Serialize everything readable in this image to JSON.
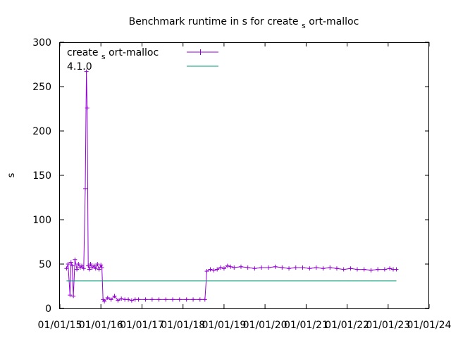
{
  "chart_data": {
    "type": "line",
    "title_main": "Benchmark runtime in s for create",
    "title_sub": "s",
    "title_tail": "ort-malloc",
    "xlabel": "",
    "ylabel": "s",
    "ylim": [
      0,
      300
    ],
    "xlim": [
      "2015-01-01",
      "2024-01-01"
    ],
    "yticks": [
      0,
      50,
      100,
      150,
      200,
      250,
      300
    ],
    "xticks": [
      "01/01/15",
      "01/01/16",
      "01/01/17",
      "01/01/18",
      "01/01/19",
      "01/01/20",
      "01/01/21",
      "01/01/22",
      "01/01/23",
      "01/01/24"
    ],
    "grid": false,
    "legend_position": "top-left",
    "series": [
      {
        "name_main": "create",
        "name_sub": "s",
        "name_tail": "ort-malloc",
        "color": "#9400d3",
        "marker": "plus",
        "x": [
          "2015-03-01",
          "2015-03-15",
          "2015-04-01",
          "2015-04-10",
          "2015-04-20",
          "2015-05-01",
          "2015-05-15",
          "2015-06-01",
          "2015-06-15",
          "2015-07-01",
          "2015-07-15",
          "2015-08-01",
          "2015-08-15",
          "2015-08-25",
          "2015-09-01",
          "2015-09-10",
          "2015-09-20",
          "2015-10-01",
          "2015-10-15",
          "2015-11-01",
          "2015-11-15",
          "2015-12-01",
          "2015-12-15",
          "2016-01-01",
          "2016-01-10",
          "2016-01-20",
          "2016-02-01",
          "2016-03-01",
          "2016-04-01",
          "2016-05-01",
          "2016-06-01",
          "2016-07-01",
          "2016-08-01",
          "2016-09-01",
          "2016-10-01",
          "2016-11-01",
          "2016-12-01",
          "2017-02-01",
          "2017-04-01",
          "2017-06-01",
          "2017-08-01",
          "2017-10-01",
          "2017-12-01",
          "2018-02-01",
          "2018-04-01",
          "2018-06-01",
          "2018-07-15",
          "2018-08-01",
          "2018-09-01",
          "2018-10-01",
          "2018-11-01",
          "2018-12-01",
          "2019-01-01",
          "2019-02-01",
          "2019-03-01",
          "2019-04-01",
          "2019-06-01",
          "2019-08-01",
          "2019-10-01",
          "2019-12-01",
          "2020-02-01",
          "2020-04-01",
          "2020-06-01",
          "2020-08-01",
          "2020-10-01",
          "2020-12-01",
          "2021-02-01",
          "2021-04-01",
          "2021-06-01",
          "2021-08-01",
          "2021-10-01",
          "2021-12-01",
          "2022-02-01",
          "2022-04-01",
          "2022-06-01",
          "2022-08-01",
          "2022-10-01",
          "2022-12-01",
          "2023-01-15",
          "2023-02-15",
          "2023-03-15"
        ],
        "y": [
          45,
          50,
          15,
          52,
          48,
          14,
          55,
          44,
          50,
          46,
          48,
          45,
          135,
          267,
          226,
          48,
          44,
          50,
          46,
          48,
          45,
          50,
          44,
          49,
          46,
          10,
          8,
          12,
          10,
          14,
          9,
          11,
          10,
          10,
          9,
          10,
          10,
          10,
          10,
          10,
          10,
          10,
          10,
          10,
          10,
          10,
          10,
          42,
          44,
          43,
          44,
          46,
          45,
          48,
          47,
          46,
          47,
          46,
          45,
          46,
          46,
          47,
          46,
          45,
          46,
          46,
          45,
          46,
          45,
          46,
          45,
          44,
          45,
          44,
          44,
          43,
          44,
          44,
          45,
          44,
          44
        ]
      },
      {
        "name": "4.1.0",
        "color": "#009e73",
        "x": [
          "2015-03-01",
          "2023-03-15"
        ],
        "y": [
          31,
          31
        ]
      }
    ]
  }
}
